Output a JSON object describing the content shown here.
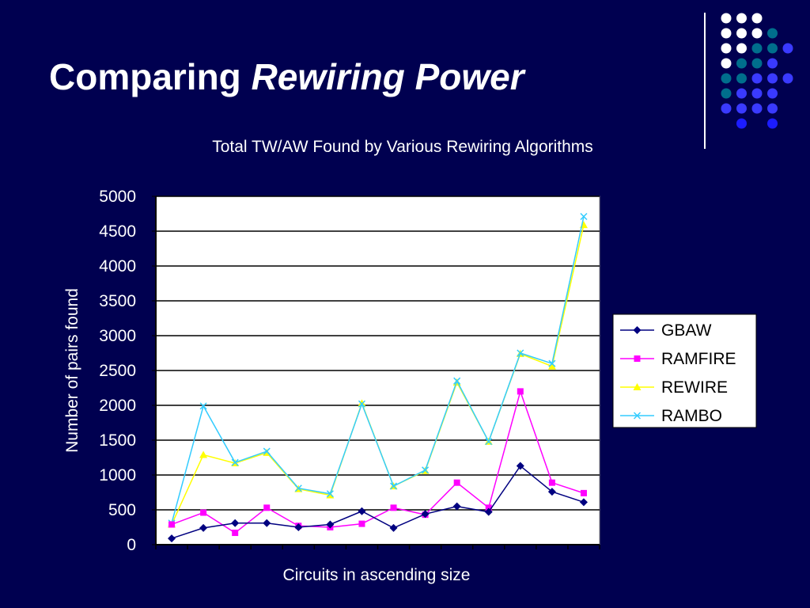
{
  "slide": {
    "title_plain": "Comparing ",
    "title_emph": "Rewiring Power"
  },
  "decoration": {
    "dot_colors": {
      "white": "#ffffff",
      "teal": "#006e8c",
      "blue": "#3a3aff",
      "bright": "#1c1cff"
    }
  },
  "chart_data": {
    "type": "line",
    "title": "Total TW/AW Found by Various Rewiring Algorithms",
    "xlabel": "Circuits in ascending size",
    "ylabel": "Number of pairs found",
    "ylim": [
      0,
      5000
    ],
    "yticks": [
      0,
      500,
      1000,
      1500,
      2000,
      2500,
      3000,
      3500,
      4000,
      4500,
      5000
    ],
    "grid": true,
    "legend_position": "right",
    "x": [
      1,
      2,
      3,
      4,
      5,
      6,
      7,
      8,
      9,
      10,
      11,
      12,
      13,
      14
    ],
    "series": [
      {
        "name": "GBAW",
        "color": "#000080",
        "marker": "diamond",
        "values": [
          90,
          240,
          310,
          310,
          250,
          290,
          480,
          240,
          440,
          550,
          470,
          1130,
          760,
          610
        ]
      },
      {
        "name": "RAMFIRE",
        "color": "#ff00ff",
        "marker": "square",
        "values": [
          290,
          460,
          170,
          530,
          270,
          250,
          300,
          530,
          430,
          890,
          530,
          2200,
          890,
          740
        ]
      },
      {
        "name": "REWIRE",
        "color": "#ffff00",
        "marker": "triangle",
        "values": [
          290,
          1290,
          1170,
          1320,
          800,
          710,
          2030,
          840,
          1060,
          2330,
          1480,
          2740,
          2560,
          4590
        ]
      },
      {
        "name": "RAMBO",
        "color": "#33ccff",
        "marker": "x",
        "values": [
          310,
          1990,
          1180,
          1340,
          810,
          730,
          2020,
          840,
          1070,
          2350,
          1480,
          2750,
          2600,
          4710
        ]
      }
    ]
  }
}
